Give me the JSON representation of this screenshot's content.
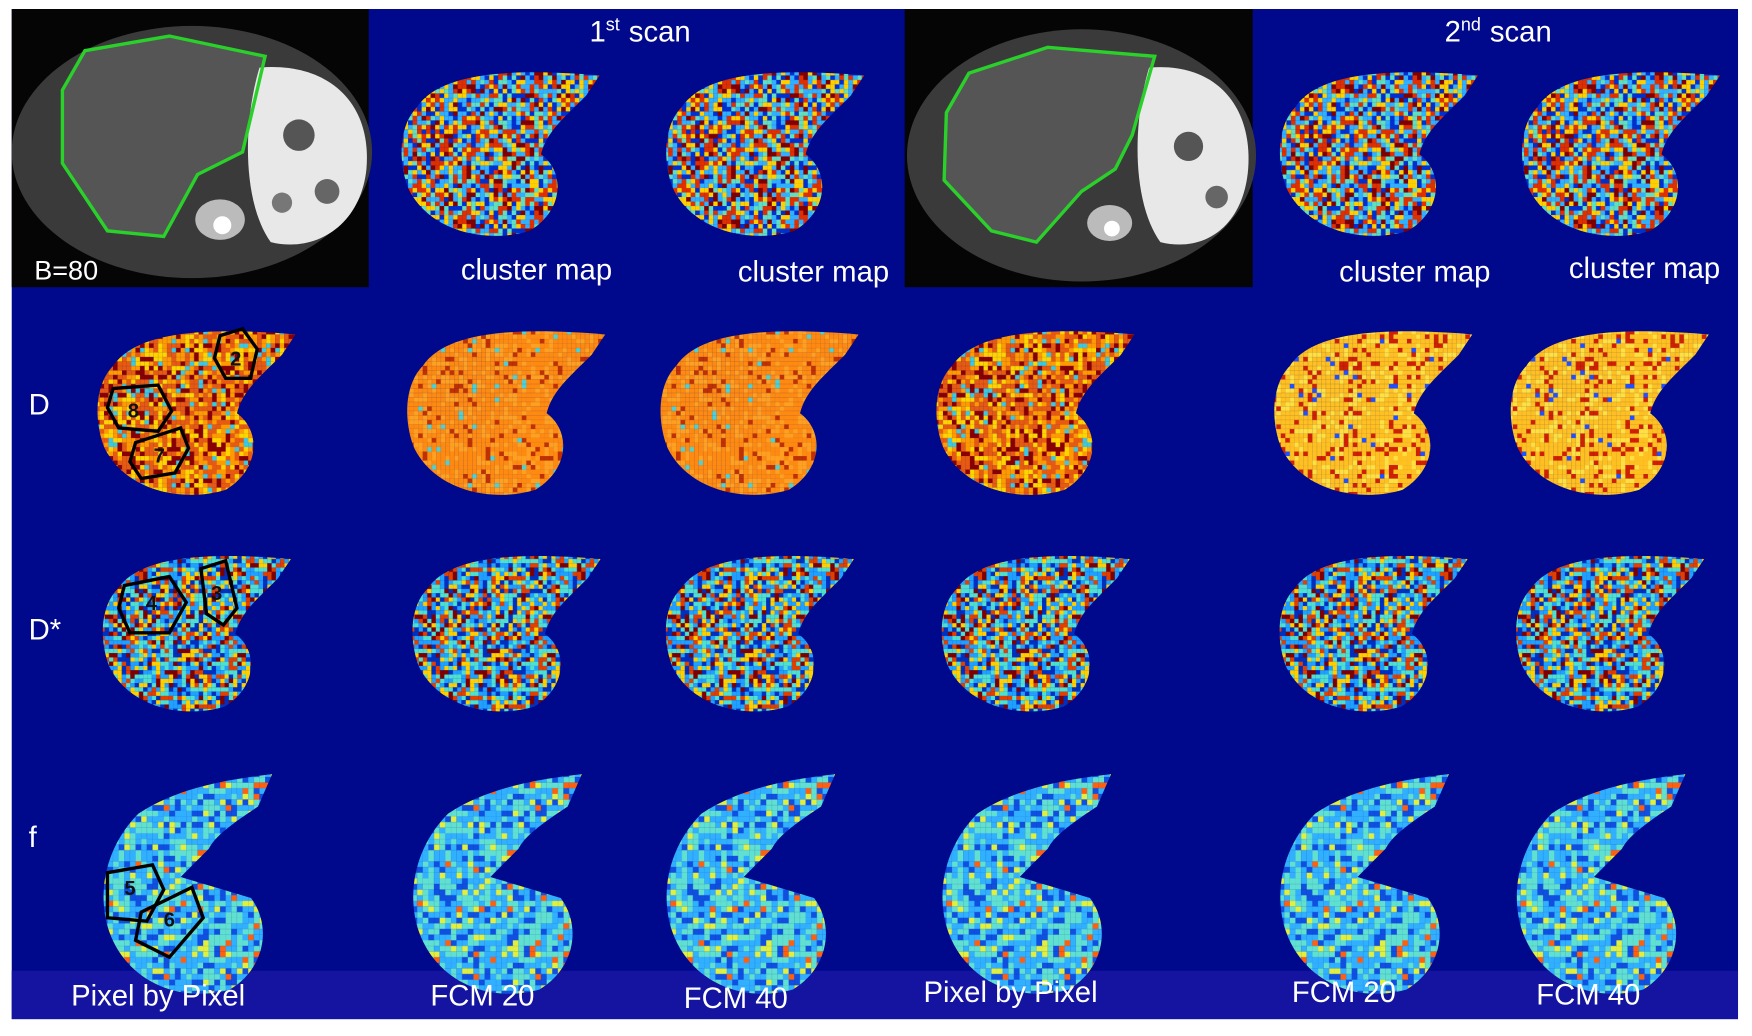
{
  "top_row": {
    "scan_1_title": {
      "number": "1",
      "suffix": "st",
      "word": "scan"
    },
    "scan_2_title": {
      "number": "2",
      "suffix": "nd",
      "word": "scan"
    },
    "b_value_label": "B=80",
    "cluster_map_labels": [
      "cluster map",
      "cluster map",
      "cluster map",
      "cluster map"
    ]
  },
  "row_labels": [
    "D",
    "D*",
    "f"
  ],
  "roi_labels": [
    "2",
    "8",
    "7",
    "4",
    "3",
    "5",
    "6"
  ],
  "column_labels": [
    "Pixel by Pixel",
    "FCM 20",
    "FCM 40",
    "Pixel by Pixel",
    "FCM 20",
    "FCM 40"
  ]
}
